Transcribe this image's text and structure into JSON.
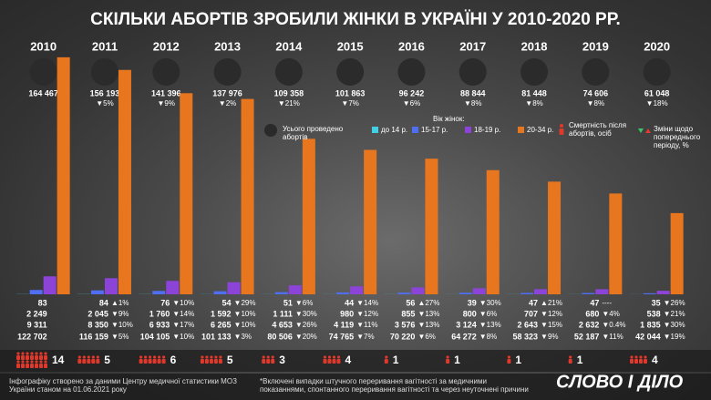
{
  "chart_data": {
    "type": "bar",
    "title": "СКІЛЬКИ АБОРТІВ ЗРОБИЛИ ЖІНКИ В УКРАЇНІ У 2010-2020 РР.",
    "categories": [
      "2010",
      "2011",
      "2012",
      "2013",
      "2014",
      "2015",
      "2016",
      "2017",
      "2018",
      "2019",
      "2020"
    ],
    "totals": [
      164467,
      156193,
      141396,
      137976,
      109358,
      101863,
      96242,
      88844,
      81448,
      74606,
      61048
    ],
    "totals_labels": [
      "164 467",
      "156 193",
      "141 396",
      "137 976",
      "109 358",
      "101 863",
      "96 242",
      "88 844",
      "81 448",
      "74 606",
      "61 048"
    ],
    "totals_change_labels": [
      null,
      "▼5%",
      "▼9%",
      "▼2%",
      "▼21%",
      "▼7%",
      "▼6%",
      "▼8%",
      "▼8%",
      "▼8%",
      "▼18%"
    ],
    "totals_legend": "Усього проведено абортів",
    "age_legend_title": "Вік жінок:",
    "ylim": [
      0,
      125000
    ],
    "series": [
      {
        "name": "до 14 р.",
        "color": "#3fd0e6",
        "values": [
          83,
          84,
          76,
          54,
          51,
          44,
          56,
          39,
          47,
          47,
          35
        ],
        "change_labels": [
          null,
          "▲1%",
          "▼10%",
          "▼29%",
          "▼6%",
          "▼14%",
          "▲27%",
          "▼30%",
          "▲21%",
          "----",
          "▼26%"
        ]
      },
      {
        "name": "15-17 р.",
        "color": "#4f6ef2",
        "values": [
          2249,
          2045,
          1760,
          1592,
          1111,
          980,
          855,
          800,
          707,
          680,
          538
        ],
        "value_labels": [
          "2 249",
          "2 045",
          "1 760",
          "1 592",
          "1 111",
          "980",
          "855",
          "800",
          "707",
          "680",
          "538"
        ],
        "change_labels": [
          null,
          "▼9%",
          "▼14%",
          "▼10%",
          "▼30%",
          "▼12%",
          "▼13%",
          "▼6%",
          "▼12%",
          "▼4%",
          "▼21%"
        ]
      },
      {
        "name": "18-19 р.",
        "color": "#8c44d8",
        "values": [
          9311,
          8350,
          6933,
          6265,
          4653,
          4119,
          3576,
          3124,
          2643,
          2632,
          1835
        ],
        "value_labels": [
          "9 311",
          "8 350",
          "6 933",
          "6 265",
          "4 653",
          "4 119",
          "3 576",
          "3 124",
          "2 643",
          "2 632",
          "1 835"
        ],
        "change_labels": [
          null,
          "▼10%",
          "▼17%",
          "▼10%",
          "▼26%",
          "▼11%",
          "▼13%",
          "▼13%",
          "▼15%",
          "▼0.4%",
          "▼30%"
        ]
      },
      {
        "name": "20-34 р.",
        "color": "#e8761f",
        "values": [
          122702,
          116159,
          104105,
          101133,
          80506,
          74765,
          70220,
          64272,
          58323,
          52187,
          42044
        ],
        "value_labels": [
          "122 702",
          "116 159",
          "104 105",
          "101 133",
          "80 506",
          "74 765",
          "70 220",
          "64 272",
          "58 323",
          "52 187",
          "42 044"
        ],
        "change_labels": [
          null,
          "▼5%",
          "▼10%",
          "▼3%",
          "▼20%",
          "▼7%",
          "▼6%",
          "▼8%",
          "▼9%",
          "▼11%",
          "▼19%"
        ]
      }
    ],
    "deaths": [
      14,
      5,
      6,
      5,
      3,
      4,
      1,
      1,
      1,
      1,
      4
    ],
    "deaths_legend": "Смертність після абортів, осіб",
    "change_legend": "Зміни щодо попереднього періоду, %",
    "source": "Інфографіку створено за даними Центру медичної статистики МОЗ України станом на 01.06.2021 року",
    "footnote": "*Включені випадки штучного переривання вагітності за медичними показаннями, спонтанного переривання вагітності та через неуточнені причини",
    "logo": "СЛОВО І ДІЛО"
  }
}
